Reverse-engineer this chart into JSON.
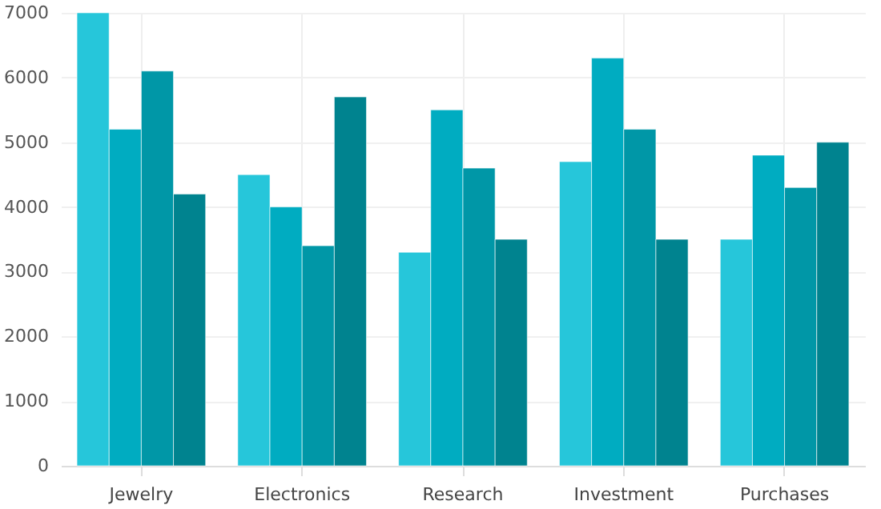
{
  "chart_data": {
    "type": "bar",
    "categories": [
      "Jewelry",
      "Electronics",
      "Research",
      "Investment",
      "Purchases"
    ],
    "series": [
      {
        "color": "#26c6da",
        "values": [
          7000,
          4500,
          3300,
          4700,
          3500
        ]
      },
      {
        "color": "#00acc1",
        "values": [
          5200,
          4000,
          5500,
          6300,
          4800
        ]
      },
      {
        "color": "#0097a7",
        "values": [
          6100,
          3400,
          4600,
          5200,
          4300
        ]
      },
      {
        "color": "#00838f",
        "values": [
          4200,
          5700,
          3500,
          3500,
          5000
        ]
      }
    ],
    "ylim": [
      0,
      7000
    ],
    "yticks": [
      0,
      1000,
      2000,
      3000,
      4000,
      5000,
      6000,
      7000
    ],
    "grid": true
  }
}
